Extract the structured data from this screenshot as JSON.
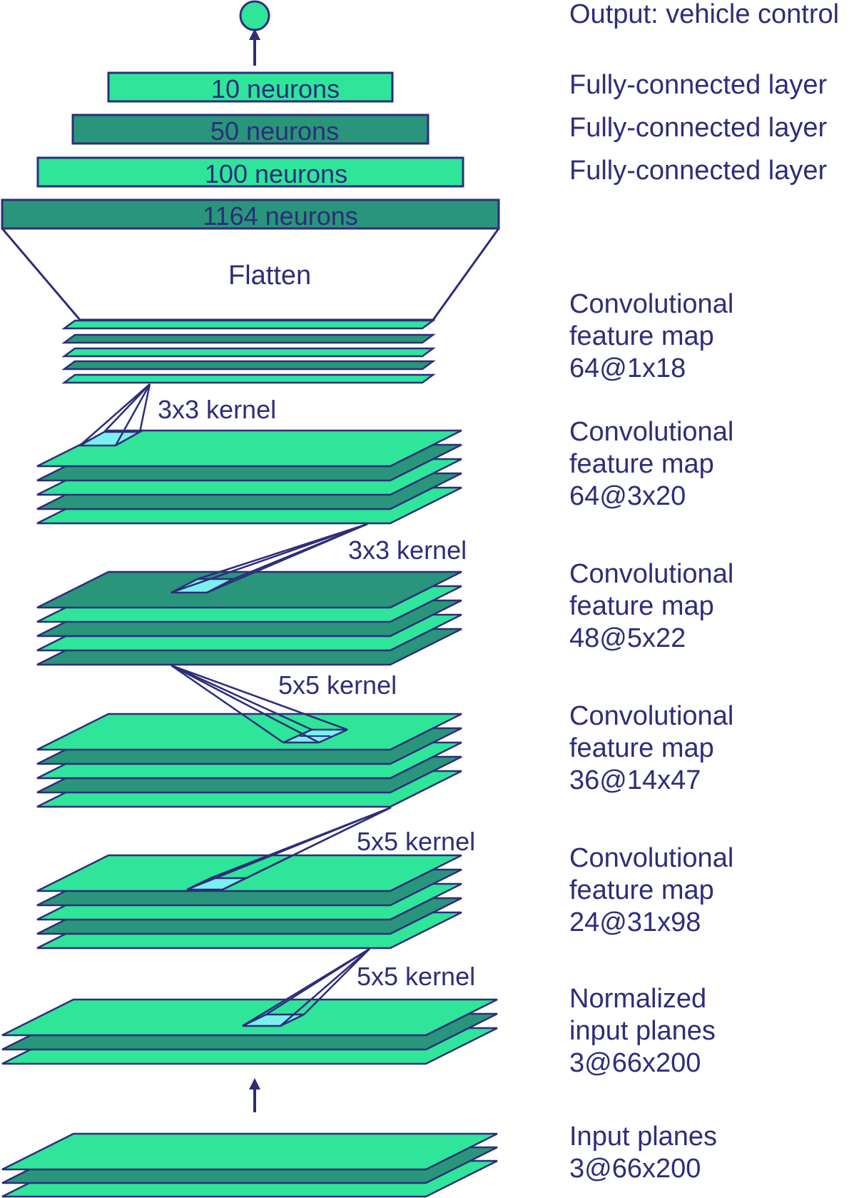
{
  "output_label": "Output: vehicle control",
  "fc_layers": [
    {
      "neurons": "10 neurons",
      "layer": "Fully-connected layer",
      "color": "#2ee59a"
    },
    {
      "neurons": "50 neurons",
      "layer": "Fully-connected layer",
      "color": "#29957a"
    },
    {
      "neurons": "100 neurons",
      "layer": "Fully-connected layer",
      "color": "#2ee59a"
    }
  ],
  "flatten_layer": {
    "neurons": "1164 neurons",
    "color": "#29957a"
  },
  "flatten_label": "Flatten",
  "kernels": [
    "3x3 kernel",
    "3x3 kernel",
    "5x5 kernel",
    "5x5 kernel",
    "5x5 kernel"
  ],
  "feature_maps": [
    {
      "lines": [
        "Convolutional",
        "feature map",
        "64@1x18"
      ]
    },
    {
      "lines": [
        "Convolutional",
        "feature map",
        "64@3x20"
      ]
    },
    {
      "lines": [
        "Convolutional",
        "feature map",
        "48@5x22"
      ]
    },
    {
      "lines": [
        "Convolutional",
        "feature map",
        "36@14x47"
      ]
    },
    {
      "lines": [
        "Convolutional",
        "feature map",
        "24@31x98"
      ]
    }
  ],
  "normalized_input": {
    "lines": [
      "Normalized",
      "input planes",
      "3@66x200"
    ]
  },
  "input_planes": {
    "lines": [
      "Input planes",
      "3@66x200"
    ]
  },
  "colors": {
    "light": "#2ee59a",
    "dark": "#29957a",
    "kernel": "#7af0f0",
    "stroke": "#2e2d7a",
    "text": "#2e2d7a"
  }
}
